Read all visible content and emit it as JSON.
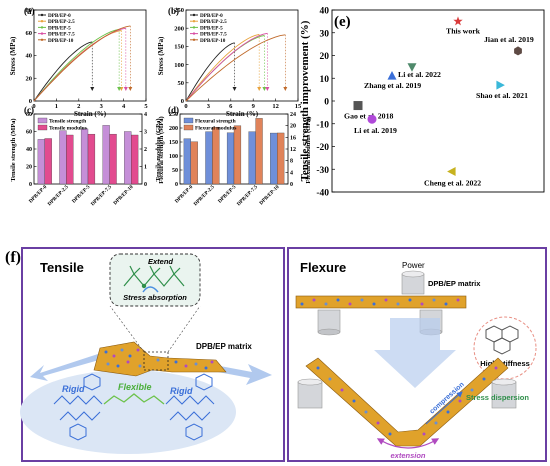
{
  "panels": {
    "a": {
      "letter": "(a)",
      "ylabel": "Stress (MPa)",
      "xlabel": "Strain (%)"
    },
    "b": {
      "letter": "(b)",
      "ylabel": "Stress (MPa)",
      "xlabel": "Strain (%)"
    },
    "c": {
      "letter": "(c)",
      "ylabel": "Tensile strength (MPa)",
      "y2label": "Tensile modulus (GPa)"
    },
    "d": {
      "letter": "(d)",
      "ylabel": "Flexural strength (MPa)",
      "y2label": "Flexural modulus (GPa)"
    },
    "e": {
      "letter": "(e)",
      "ylabel": "Tensile strength improvement (%)"
    },
    "f": {
      "letter": "(f)"
    }
  },
  "chart_data": [
    {
      "type": "line",
      "panel": "a",
      "xlabel": "Strain (%)",
      "ylabel": "Stress (MPa)",
      "xlim": [
        0,
        5
      ],
      "ylim": [
        0,
        80
      ],
      "xticks": [
        0,
        1,
        2,
        3,
        4,
        5
      ],
      "yticks": [
        0,
        20,
        40,
        60,
        80
      ],
      "legend": "top-left",
      "series": [
        {
          "name": "DPB/EP-0",
          "color": "#222222",
          "end": [
            2.6,
            52
          ]
        },
        {
          "name": "DPB/EP-2.5",
          "color": "#e8a33d",
          "end": [
            3.9,
            62
          ]
        },
        {
          "name": "DPB/EP-5",
          "color": "#6cc24a",
          "end": [
            3.8,
            63
          ]
        },
        {
          "name": "DPB/EP-7.5",
          "color": "#d94fa3",
          "end": [
            4.1,
            64
          ]
        },
        {
          "name": "DPB/EP-10",
          "color": "#c06a2b",
          "end": [
            4.3,
            66
          ]
        }
      ]
    },
    {
      "type": "line",
      "panel": "b",
      "xlabel": "Strain (%)",
      "ylabel": "Stress (MPa)",
      "xlim": [
        0,
        15
      ],
      "ylim": [
        0,
        250
      ],
      "xticks": [
        0,
        3,
        6,
        9,
        12,
        15
      ],
      "yticks": [
        0,
        50,
        100,
        150,
        200,
        250
      ],
      "legend": "top-left",
      "series": [
        {
          "name": "DPB/EP-0",
          "color": "#222222",
          "end": [
            6.5,
            160
          ]
        },
        {
          "name": "DPB/EP-2.5",
          "color": "#e8a33d",
          "end": [
            9.8,
            183
          ]
        },
        {
          "name": "DPB/EP-5",
          "color": "#6cc24a",
          "end": [
            10.5,
            180
          ]
        },
        {
          "name": "DPB/EP-7.5",
          "color": "#d94fa3",
          "end": [
            10.9,
            186
          ]
        },
        {
          "name": "DPB/EP-10",
          "color": "#c06a2b",
          "end": [
            13.3,
            182
          ]
        }
      ]
    },
    {
      "type": "bar",
      "panel": "c",
      "categories": [
        "DPB/EP-0",
        "DPB/EP-2.5",
        "DPB/EP-5",
        "DPB/EP-7.5",
        "DPB/EP-10"
      ],
      "ylim": [
        0,
        80
      ],
      "y2lim": [
        0,
        4
      ],
      "yticks": [
        0,
        20,
        40,
        60,
        80
      ],
      "y2ticks": [
        0,
        1,
        2,
        3,
        4
      ],
      "legend": "top-left",
      "series": [
        {
          "name": "Tensile strength",
          "axis": "left",
          "color": "#c58fd8",
          "values": [
            51,
            61,
            63,
            67,
            60
          ]
        },
        {
          "name": "Tensile modulus",
          "axis": "right",
          "color": "#e24b8f",
          "values": [
            2.6,
            2.8,
            2.85,
            2.85,
            2.8
          ]
        }
      ]
    },
    {
      "type": "bar",
      "panel": "d",
      "categories": [
        "DPB/EP-0",
        "DPB/EP-2.5",
        "DPB/EP-5",
        "DPB/EP-7.5",
        "DPB/EP-10"
      ],
      "ylim": [
        0,
        250
      ],
      "y2lim": [
        0,
        24
      ],
      "yticks": [
        0,
        50,
        100,
        150,
        200,
        250
      ],
      "y2ticks": [
        0,
        4,
        8,
        12,
        16,
        20,
        24
      ],
      "legend": "top-left",
      "series": [
        {
          "name": "Flexural strength",
          "axis": "left",
          "color": "#6f8fd9",
          "values": [
            162,
            187,
            183,
            187,
            182
          ]
        },
        {
          "name": "Flexural modulus",
          "axis": "right",
          "color": "#e0835a",
          "values": [
            14.5,
            19.5,
            20,
            22.5,
            17.5
          ]
        }
      ]
    },
    {
      "type": "scatter",
      "panel": "e",
      "ylabel": "Tensile strength improvement (%)",
      "ylim": [
        -40,
        40
      ],
      "yticks": [
        -40,
        -30,
        -20,
        -10,
        0,
        10,
        20,
        30,
        40
      ],
      "points": [
        {
          "label": "This work",
          "y": 35,
          "shape": "star",
          "color": "#d93a3a"
        },
        {
          "label": "Jian et al. 2019",
          "y": 22,
          "shape": "hexagon",
          "color": "#5e4a44"
        },
        {
          "label": "Li et al. 2022",
          "y": 15,
          "shape": "triangle-down",
          "color": "#4f8a6b"
        },
        {
          "label": "Zhang et al. 2019",
          "y": 11,
          "shape": "triangle-up",
          "color": "#3a6fd8"
        },
        {
          "label": "Shao et al. 2021",
          "y": 7,
          "shape": "triangle-right",
          "color": "#3ab8d9"
        },
        {
          "label": "Gao et al. 2018",
          "y": -2,
          "shape": "square",
          "color": "#555555"
        },
        {
          "label": "Li et al. 2019",
          "y": -8,
          "shape": "circle",
          "color": "#b04ad9"
        },
        {
          "label": "Cheng et al. 2022",
          "y": -31,
          "shape": "triangle-left",
          "color": "#c7b21f"
        }
      ]
    }
  ],
  "schematic": {
    "tensile_title": "Tensile",
    "extend_label": "Extend",
    "stress_absorption_label": "Stress absorption",
    "matrix_label_tensile": "DPB/EP matrix",
    "rigid_left": "Rigid",
    "flexible": "Flexible",
    "rigid_right": "Rigid",
    "flexure_title": "Flexure",
    "power_label": "Power",
    "matrix_label_flexure": "DPB/EP matrix",
    "high_stiffness_label": "High stiffness",
    "compression_label": "compression",
    "stress_dispersion_label": "Stress dispersion",
    "extension_label": "extension"
  },
  "colors": {
    "frame": "#6a3fa3",
    "sheet": "#e0a22b",
    "arrow_blue": "#4a8fe0",
    "green_text": "#2f8f4a",
    "purple_text": "#b04ac0"
  }
}
